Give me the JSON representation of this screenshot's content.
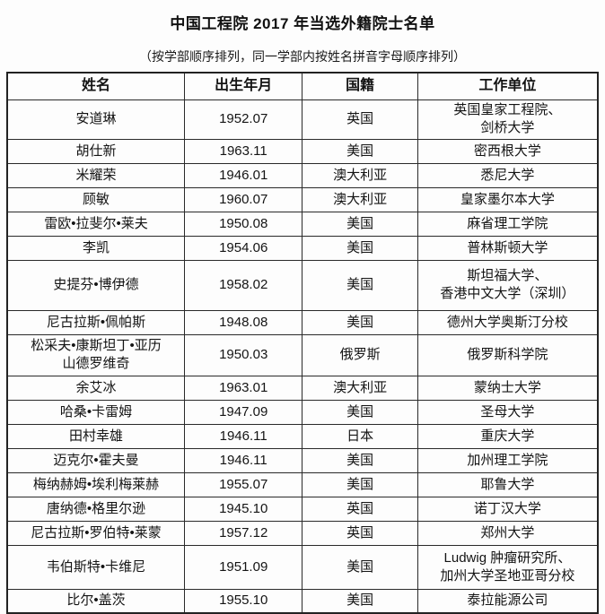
{
  "page": {
    "title": "中国工程院 2017 年当选外籍院士名单",
    "subtitle": "（按学部顺序排列，同一学部内按姓名拼音字母顺序排列）"
  },
  "colors": {
    "background": "#fdfdfd",
    "border": "#2a2a2a",
    "text": "#141414"
  },
  "table": {
    "headers": {
      "name": "姓名",
      "birth": "出生年月",
      "nationality": "国籍",
      "affiliation": "工作单位"
    },
    "rows": [
      {
        "name": "安道琳",
        "birth": "1952.07",
        "nationality": "英国",
        "affiliation": [
          "英国皇家工程院、",
          "剑桥大学"
        ]
      },
      {
        "name": "胡仕新",
        "birth": "1963.11",
        "nationality": "美国",
        "affiliation": "密西根大学"
      },
      {
        "name": "米耀荣",
        "birth": "1946.01",
        "nationality": "澳大利亚",
        "affiliation": "悉尼大学"
      },
      {
        "name": "顾敏",
        "birth": "1960.07",
        "nationality": "澳大利亚",
        "affiliation": "皇家墨尔本大学"
      },
      {
        "name": "雷欧•拉斐尔•莱夫",
        "birth": "1950.08",
        "nationality": "美国",
        "affiliation": "麻省理工学院"
      },
      {
        "name": "李凯",
        "birth": "1954.06",
        "nationality": "美国",
        "affiliation": "普林斯顿大学"
      },
      {
        "name": "史提芬•博伊德",
        "birth": "1958.02",
        "nationality": "美国",
        "affiliation": [
          "斯坦福大学、",
          "香港中文大学（深圳）"
        ]
      },
      {
        "name": "尼古拉斯•佩帕斯",
        "birth": "1948.08",
        "nationality": "美国",
        "affiliation": "德州大学奥斯汀分校"
      },
      {
        "name": [
          "松采夫•康斯坦丁•亚历",
          "山德罗维奇"
        ],
        "birth": "1950.03",
        "nationality": "俄罗斯",
        "affiliation": "俄罗斯科学院"
      },
      {
        "name": "余艾冰",
        "birth": "1963.01",
        "nationality": "澳大利亚",
        "affiliation": "蒙纳士大学"
      },
      {
        "name": "哈桑•卡雷姆",
        "birth": "1947.09",
        "nationality": "美国",
        "affiliation": "圣母大学"
      },
      {
        "name": "田村幸雄",
        "birth": "1946.11",
        "nationality": "日本",
        "affiliation": "重庆大学"
      },
      {
        "name": "迈克尔•霍夫曼",
        "birth": "1946.11",
        "nationality": "美国",
        "affiliation": "加州理工学院"
      },
      {
        "name": "梅纳赫姆•埃利梅莱赫",
        "birth": "1955.07",
        "nationality": "美国",
        "affiliation": "耶鲁大学"
      },
      {
        "name": "唐纳德•格里尔逊",
        "birth": "1945.10",
        "nationality": "英国",
        "affiliation": "诺丁汉大学"
      },
      {
        "name": "尼古拉斯•罗伯特•莱蒙",
        "birth": "1957.12",
        "nationality": "英国",
        "affiliation": "郑州大学"
      },
      {
        "name": "韦伯斯特•卡维尼",
        "birth": "1951.09",
        "nationality": "美国",
        "affiliation": [
          "Ludwig 肿瘤研究所、",
          "加州大学圣地亚哥分校"
        ]
      },
      {
        "name": "比尔•盖茨",
        "birth": "1955.10",
        "nationality": "美国",
        "affiliation": "泰拉能源公司"
      }
    ]
  }
}
